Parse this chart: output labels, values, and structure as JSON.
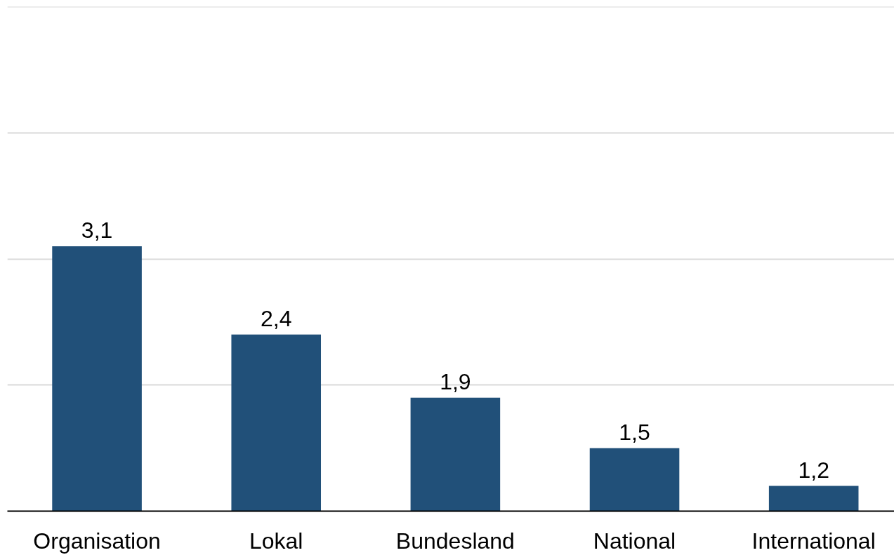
{
  "chart_data": {
    "type": "bar",
    "categories": [
      "Organisation",
      "Lokal",
      "Bundesland",
      "National",
      "International"
    ],
    "values": [
      3.1,
      2.4,
      1.9,
      1.5,
      1.2
    ],
    "value_labels": [
      "3,1",
      "2,4",
      "1,9",
      "1,5",
      "1,2"
    ],
    "color": "#215079",
    "ylim": [
      1,
      5
    ],
    "yticks": [
      {
        "value": 1,
        "label": null
      },
      {
        "value": 2,
        "label": null
      },
      {
        "value": 3,
        "label": null
      },
      {
        "value": 4,
        "label": null
      },
      {
        "value": 5,
        "label": null
      }
    ],
    "grid": "y",
    "tick_labels": "x"
  }
}
